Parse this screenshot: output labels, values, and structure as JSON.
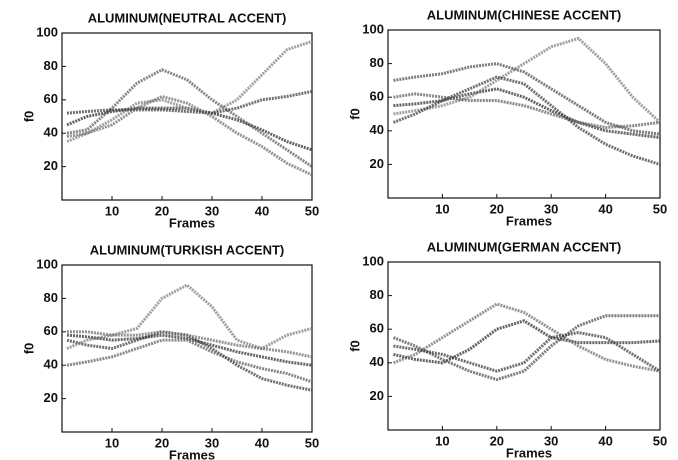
{
  "chart_data": [
    {
      "type": "line",
      "title": "ALUMINUM(NEUTRAL ACCENT)",
      "x_label": "Frames",
      "y_label": "f0",
      "x": [
        1,
        5,
        10,
        15,
        20,
        25,
        30,
        35,
        40,
        45,
        50
      ],
      "series": [
        {
          "color": "#222222",
          "values": [
            45,
            50,
            53,
            55,
            55,
            55,
            52,
            48,
            42,
            35,
            30
          ]
        },
        {
          "color": "#555555",
          "values": [
            40,
            42,
            55,
            70,
            78,
            72,
            60,
            50,
            40,
            30,
            20
          ]
        },
        {
          "color": "#777777",
          "values": [
            35,
            40,
            48,
            58,
            60,
            55,
            52,
            60,
            75,
            90,
            95
          ]
        },
        {
          "color": "#333333",
          "values": [
            52,
            53,
            54,
            54,
            54,
            53,
            52,
            55,
            60,
            62,
            65
          ]
        },
        {
          "color": "#666666",
          "values": [
            38,
            40,
            45,
            55,
            62,
            58,
            50,
            40,
            32,
            22,
            15
          ]
        }
      ],
      "xlim": [
        0,
        50
      ],
      "ylim": [
        0,
        100
      ],
      "xticks": [
        10,
        20,
        30,
        40,
        50
      ],
      "yticks": [
        20,
        40,
        60,
        80,
        100
      ]
    },
    {
      "type": "line",
      "title": "ALUMINUM(CHINESE ACCENT)",
      "x_label": "Frames",
      "y_label": "f0",
      "x": [
        1,
        5,
        10,
        15,
        20,
        25,
        30,
        35,
        40,
        45,
        50
      ],
      "series": [
        {
          "color": "#222222",
          "values": [
            55,
            56,
            58,
            62,
            65,
            60,
            52,
            45,
            40,
            38,
            36
          ]
        },
        {
          "color": "#444444",
          "values": [
            70,
            72,
            74,
            78,
            80,
            75,
            65,
            55,
            45,
            40,
            38
          ]
        },
        {
          "color": "#777777",
          "values": [
            50,
            52,
            55,
            60,
            70,
            80,
            90,
            95,
            80,
            60,
            45
          ]
        },
        {
          "color": "#333333",
          "values": [
            45,
            50,
            58,
            65,
            72,
            68,
            55,
            42,
            32,
            25,
            20
          ]
        },
        {
          "color": "#555555",
          "values": [
            60,
            62,
            60,
            58,
            58,
            55,
            50,
            45,
            42,
            43,
            45
          ]
        }
      ],
      "xlim": [
        0,
        50
      ],
      "ylim": [
        0,
        100
      ],
      "xticks": [
        10,
        20,
        30,
        40,
        50
      ],
      "yticks": [
        20,
        40,
        60,
        80,
        100
      ]
    },
    {
      "type": "line",
      "title": "ALUMINUM(TURKISH ACCENT)",
      "x_label": "Frames",
      "y_label": "f0",
      "x": [
        1,
        5,
        10,
        15,
        20,
        25,
        30,
        35,
        40,
        45,
        50
      ],
      "series": [
        {
          "color": "#222222",
          "values": [
            58,
            57,
            55,
            56,
            58,
            56,
            52,
            48,
            45,
            42,
            40
          ]
        },
        {
          "color": "#333333",
          "values": [
            55,
            52,
            50,
            55,
            60,
            58,
            50,
            40,
            32,
            28,
            25
          ]
        },
        {
          "color": "#777777",
          "values": [
            50,
            55,
            58,
            62,
            80,
            88,
            75,
            55,
            50,
            58,
            62
          ]
        },
        {
          "color": "#555555",
          "values": [
            40,
            42,
            45,
            50,
            55,
            55,
            48,
            42,
            38,
            35,
            30
          ]
        },
        {
          "color": "#666666",
          "values": [
            60,
            60,
            58,
            58,
            60,
            58,
            55,
            52,
            50,
            48,
            45
          ]
        }
      ],
      "xlim": [
        0,
        50
      ],
      "ylim": [
        0,
        100
      ],
      "xticks": [
        10,
        20,
        30,
        40,
        50
      ],
      "yticks": [
        20,
        40,
        60,
        80,
        100
      ]
    },
    {
      "type": "line",
      "title": "ALUMINUM(GERMAN ACCENT)",
      "x_label": "Frames",
      "y_label": "f0",
      "x": [
        1,
        5,
        10,
        15,
        20,
        25,
        30,
        35,
        40,
        45,
        50
      ],
      "series": [
        {
          "color": "#222222",
          "values": [
            45,
            42,
            40,
            48,
            60,
            65,
            55,
            52,
            52,
            52,
            53
          ]
        },
        {
          "color": "#444444",
          "values": [
            55,
            50,
            42,
            35,
            30,
            35,
            50,
            62,
            68,
            68,
            68
          ]
        },
        {
          "color": "#666666",
          "values": [
            40,
            45,
            55,
            65,
            75,
            70,
            60,
            50,
            42,
            38,
            35
          ]
        },
        {
          "color": "#333333",
          "values": [
            50,
            48,
            45,
            40,
            35,
            40,
            55,
            58,
            55,
            45,
            35
          ]
        }
      ],
      "xlim": [
        0,
        50
      ],
      "ylim": [
        0,
        100
      ],
      "xticks": [
        10,
        20,
        30,
        40,
        50
      ],
      "yticks": [
        20,
        40,
        60,
        80,
        100
      ]
    }
  ]
}
